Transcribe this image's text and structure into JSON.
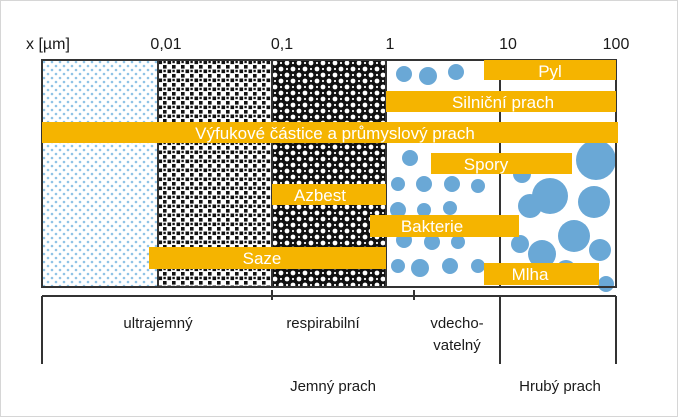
{
  "axis": {
    "unit_label": "x [µm]",
    "ticks": [
      "0,01",
      "0,1",
      "1",
      "10",
      "100"
    ]
  },
  "particles": [
    {
      "label": "Pyl",
      "from": 9,
      "to": 100
    },
    {
      "label": "Silniční prach",
      "from": 1,
      "to": 100
    },
    {
      "label": "Výfukové částice a průmyslový prach",
      "from": 0.001,
      "to": 100
    },
    {
      "label": "Spory",
      "from": 2.5,
      "to": 50
    },
    {
      "label": "Azbest",
      "from": 0.1,
      "to": 1
    },
    {
      "label": "Bakterie",
      "from": 0.5,
      "to": 15
    },
    {
      "label": "Saze",
      "from": 0.01,
      "to": 1
    },
    {
      "label": "Mlha",
      "from": 9,
      "to": 80
    }
  ],
  "zones": [
    {
      "label": "ultrajemný"
    },
    {
      "label": "respirabilní"
    },
    {
      "label": "vdecho-",
      "label2": "vatelný"
    }
  ],
  "groups": {
    "fine": "Jemný prach",
    "coarse": "Hrubý prach"
  },
  "colors": {
    "bar": "#f5b400",
    "bar_text": "#ffffff",
    "dots_small": "#8fc3e6",
    "dots_large": "#6aa8d6"
  }
}
